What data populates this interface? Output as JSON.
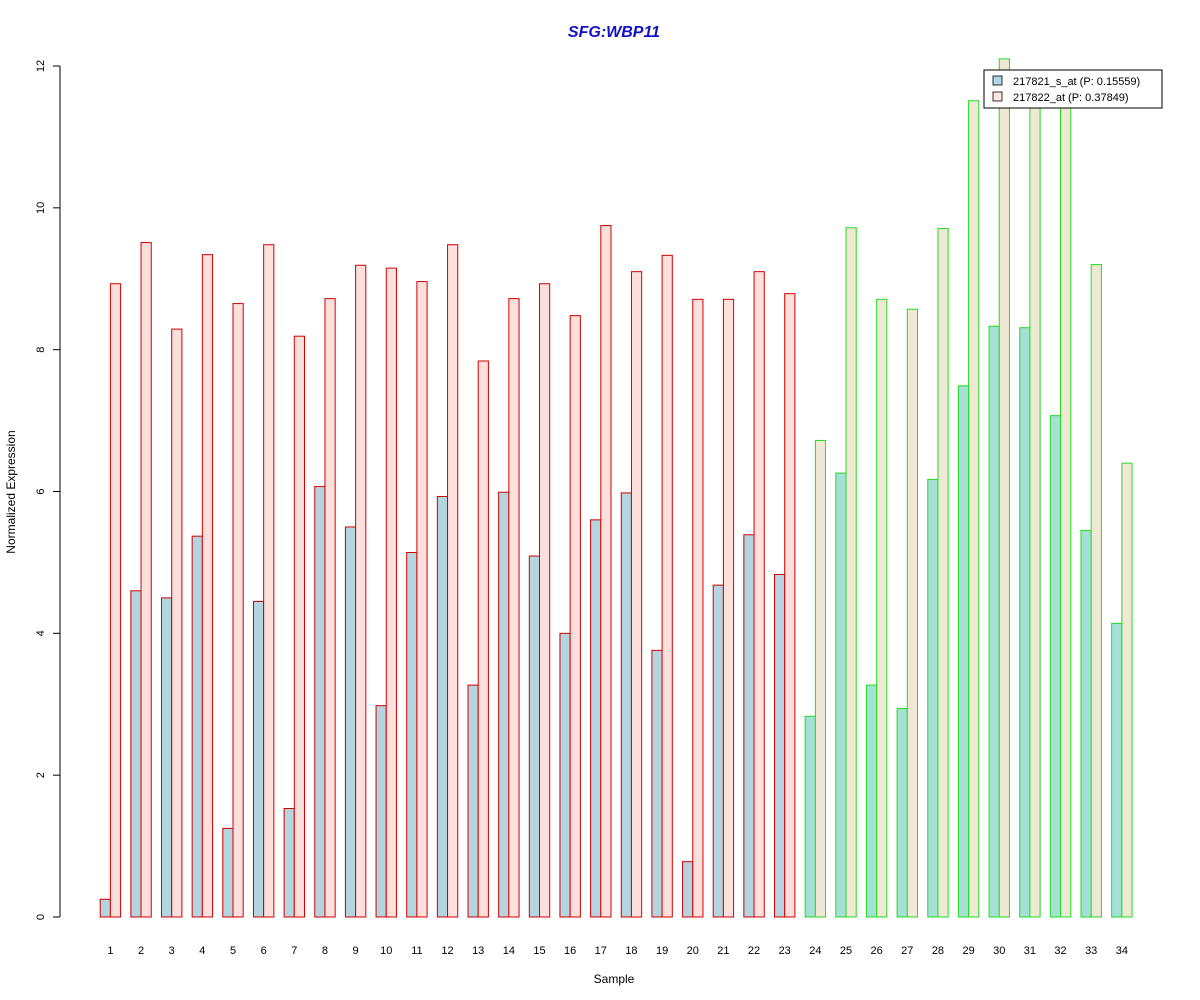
{
  "chart_data": {
    "type": "bar",
    "title": "SFG:WBP11",
    "xlabel": "Sample",
    "ylabel": "Normalized Expression",
    "ylim": [
      0,
      12
    ],
    "yticks": [
      0,
      2,
      4,
      6,
      8,
      10,
      12
    ],
    "grid": false,
    "legend_position": "top-right",
    "categories": [
      "1",
      "2",
      "3",
      "4",
      "5",
      "6",
      "7",
      "8",
      "9",
      "10",
      "11",
      "12",
      "13",
      "14",
      "15",
      "16",
      "17",
      "18",
      "19",
      "20",
      "21",
      "22",
      "23",
      "24",
      "25",
      "26",
      "27",
      "28",
      "29",
      "30",
      "31",
      "32",
      "33",
      "34"
    ],
    "series": [
      {
        "name": "217821_s_at (P: 0.15559)",
        "values": [
          0.25,
          4.6,
          4.5,
          5.37,
          1.25,
          4.45,
          1.53,
          6.07,
          5.5,
          2.98,
          5.14,
          5.93,
          3.27,
          5.99,
          5.09,
          4.0,
          5.6,
          5.98,
          3.76,
          0.78,
          4.68,
          5.39,
          4.83,
          2.83,
          6.26,
          3.27,
          2.94,
          6.17,
          7.49,
          8.33,
          8.31,
          7.07,
          5.45,
          4.14
        ]
      },
      {
        "name": "217822_at (P: 0.37849)",
        "values": [
          8.93,
          9.51,
          8.29,
          9.34,
          8.65,
          9.48,
          8.19,
          8.72,
          9.19,
          9.15,
          8.96,
          9.48,
          7.84,
          8.72,
          8.93,
          8.48,
          9.75,
          9.1,
          9.33,
          8.71,
          8.71,
          9.1,
          8.79,
          6.72,
          9.72,
          8.71,
          8.57,
          9.71,
          11.51,
          12.1,
          11.5,
          11.5,
          9.2,
          6.4
        ]
      }
    ],
    "group_split_after": 23,
    "colors": {
      "series1_fill": "#b4d4e0",
      "series1_fill_group2": "#a4e0d4",
      "series2_fill": "#fde0dc",
      "series2_fill_group2": "#efe8d4",
      "group1_border": "#d00000",
      "group2_border": "#22dd22",
      "title": "#1010c8",
      "legend_series1": "#add8e6",
      "legend_series2": "#ffe4e1"
    }
  }
}
